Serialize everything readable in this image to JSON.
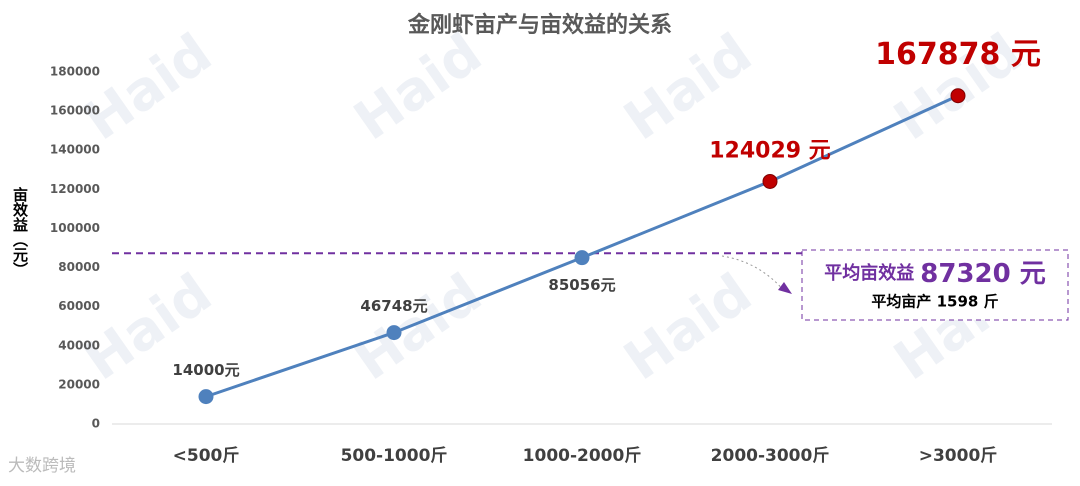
{
  "chart_data": {
    "type": "line",
    "title": "金刚虾亩产与亩效益的关系",
    "y_label": "亩效益（元）",
    "categories": [
      "<500斤",
      "500-1000斤",
      "1000-2000斤",
      "2000-3000斤",
      ">3000斤"
    ],
    "series": [
      {
        "name": "亩效益",
        "color": "#4f81bd",
        "values": [
          14000,
          46748,
          85056,
          124029,
          167878
        ],
        "value_labels": [
          "14000元",
          "46748元",
          "85056元",
          "124029 元",
          "167878 元"
        ],
        "point_colors": [
          "#4f81bd",
          "#4f81bd",
          "#4f81bd",
          "#c00000",
          "#c00000"
        ]
      }
    ],
    "ylim": [
      0,
      180000
    ],
    "yticks": [
      0,
      20000,
      40000,
      60000,
      80000,
      100000,
      120000,
      140000,
      160000,
      180000
    ],
    "grid": false,
    "average_line": {
      "value": 87320,
      "color": "#7030a0",
      "prefix": "平均亩效益",
      "value_label": "87320 元",
      "yield_label": "平均亩产 1598 斤"
    },
    "watermark": "Haid",
    "source": "大数跨境"
  }
}
